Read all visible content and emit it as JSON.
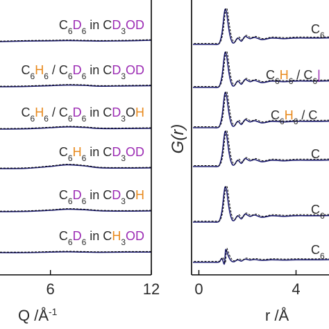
{
  "colors": {
    "deuterium": "#9b2ab3",
    "hydrogen": "#e8891c",
    "text": "#2a2a2a",
    "fit_line": "#1a1a6e",
    "data_dash": "#000000",
    "axis": "#000000"
  },
  "chart_data": [
    {
      "type": "line",
      "panel": "left",
      "xlabel": "Q /Å",
      "xlabel_superscript": "-1",
      "x_ticks": [
        "6",
        "12"
      ],
      "x_tick_values": [
        6,
        12
      ],
      "xlim": [
        3,
        12
      ],
      "series": [
        {
          "label_parts": [
            [
              "C",
              "t"
            ],
            [
              "6",
              "s"
            ],
            [
              "D",
              "d"
            ],
            [
              "6",
              "s"
            ],
            [
              " in C",
              "t"
            ],
            [
              "D",
              "d"
            ],
            [
              "3",
              "s"
            ],
            [
              "OD",
              "d"
            ]
          ],
          "baseline": 0.0,
          "x": [
            3,
            4.5,
            6,
            7,
            8,
            9,
            10.5,
            12
          ],
          "y": [
            0,
            0.02,
            0.03,
            0.04,
            0.03,
            0.02,
            0.03,
            0.05
          ]
        },
        {
          "label_parts": [
            [
              "C",
              "t"
            ],
            [
              "6",
              "s"
            ],
            [
              "H",
              "h"
            ],
            [
              "6",
              "s"
            ],
            [
              " / C",
              "t"
            ],
            [
              "6",
              "s"
            ],
            [
              "D",
              "d"
            ],
            [
              "6",
              "s"
            ],
            [
              " in C",
              "t"
            ],
            [
              "D",
              "d"
            ],
            [
              "3",
              "s"
            ],
            [
              "OD",
              "d"
            ]
          ],
          "baseline": 1.0,
          "x": [
            3,
            4.5,
            6,
            7,
            8,
            9,
            10.5,
            12
          ],
          "y": [
            0,
            0.01,
            0.04,
            0.06,
            0.05,
            0.02,
            0.03,
            0.04
          ]
        },
        {
          "label_parts": [
            [
              "C",
              "t"
            ],
            [
              "6",
              "s"
            ],
            [
              "H",
              "h"
            ],
            [
              "6",
              "s"
            ],
            [
              " / C",
              "t"
            ],
            [
              "6",
              "s"
            ],
            [
              "D",
              "d"
            ],
            [
              "6",
              "s"
            ],
            [
              " in C",
              "t"
            ],
            [
              "D",
              "d"
            ],
            [
              "3",
              "s"
            ],
            [
              "O",
              "t"
            ],
            [
              "H",
              "h"
            ]
          ],
          "baseline": 2.0,
          "x": [
            3,
            4.5,
            6,
            7,
            8,
            9,
            10.5,
            12
          ],
          "y": [
            0,
            0.01,
            0.05,
            0.08,
            0.06,
            0.02,
            0.02,
            0.03
          ]
        },
        {
          "label_parts": [
            [
              "C",
              "t"
            ],
            [
              "6",
              "s"
            ],
            [
              "H",
              "h"
            ],
            [
              "6",
              "s"
            ],
            [
              " in C",
              "t"
            ],
            [
              "D",
              "d"
            ],
            [
              "3",
              "s"
            ],
            [
              "OD",
              "d"
            ]
          ],
          "baseline": 3.0,
          "x": [
            3,
            4.5,
            6,
            7,
            8,
            9,
            10.5,
            12
          ],
          "y": [
            0,
            0.01,
            0.08,
            0.14,
            0.1,
            0.03,
            0.02,
            0.03
          ]
        },
        {
          "label_parts": [
            [
              "C",
              "t"
            ],
            [
              "6",
              "s"
            ],
            [
              "D",
              "d"
            ],
            [
              "6",
              "s"
            ],
            [
              " in C",
              "t"
            ],
            [
              "D",
              "d"
            ],
            [
              "3",
              "s"
            ],
            [
              "O",
              "t"
            ],
            [
              "H",
              "h"
            ]
          ],
          "baseline": 4.0,
          "x": [
            3,
            4.5,
            6,
            7,
            8,
            9,
            10.5,
            12
          ],
          "y": [
            0,
            0.01,
            0.05,
            0.09,
            0.07,
            0.03,
            0.02,
            0.03
          ]
        },
        {
          "label_parts": [
            [
              "C",
              "t"
            ],
            [
              "6",
              "s"
            ],
            [
              "D",
              "d"
            ],
            [
              "6",
              "s"
            ],
            [
              " in C",
              "t"
            ],
            [
              "H",
              "h"
            ],
            [
              "3",
              "s"
            ],
            [
              "OD",
              "d"
            ]
          ],
          "baseline": 5.0,
          "x": [
            3,
            4.5,
            6,
            7,
            8,
            9,
            10.5,
            12
          ],
          "y": [
            0,
            0.0,
            0.02,
            0.03,
            0.02,
            0.01,
            0.02,
            0.02
          ]
        }
      ]
    },
    {
      "type": "line",
      "panel": "right",
      "ylabel": "G(r)",
      "xlabel": "r /Å",
      "x_ticks": [
        "0",
        "4"
      ],
      "x_tick_values": [
        0,
        4
      ],
      "xlim": [
        -0.3,
        6.5
      ],
      "series": [
        {
          "label_parts": [
            [
              "C",
              "t"
            ],
            [
              "6",
              "s"
            ]
          ],
          "baseline": 0.0
        },
        {
          "label_parts": [
            [
              "C",
              "t"
            ],
            [
              "6",
              "s"
            ],
            [
              "H",
              "h"
            ],
            [
              "6",
              "s"
            ],
            [
              " / C",
              "t"
            ],
            [
              "6",
              "s"
            ],
            [
              "|",
              "d"
            ]
          ],
          "baseline": 1.0
        },
        {
          "label_parts": [
            [
              "C",
              "t"
            ],
            [
              "6",
              "s"
            ],
            [
              "H",
              "h"
            ],
            [
              "6",
              "s"
            ],
            [
              " / C",
              "t"
            ]
          ],
          "baseline": 2.0
        },
        {
          "label_parts": [
            [
              "C",
              "t"
            ]
          ],
          "baseline": 3.0
        },
        {
          "label_parts": [
            [
              "C",
              "t"
            ],
            [
              "6",
              "s"
            ]
          ],
          "baseline": 4.0
        },
        {
          "label_parts": [
            [
              "C",
              "t"
            ],
            [
              "6",
              "s"
            ]
          ],
          "baseline": 5.0
        }
      ],
      "pdf_x": [
        0.6,
        0.75,
        0.85,
        0.95,
        1.05,
        1.1,
        1.15,
        1.25,
        1.35,
        1.45,
        1.6,
        1.75,
        1.9,
        2.1,
        2.3,
        2.6,
        3.0,
        3.5,
        4.0,
        5.0,
        6.5
      ],
      "pdf_y": [
        0,
        0,
        0.05,
        0.35,
        1.0,
        1.1,
        0.95,
        0.4,
        0.1,
        0.05,
        0.2,
        0.1,
        0.25,
        0.18,
        0.22,
        0.15,
        0.2,
        0.18,
        0.2,
        0.2,
        0.22
      ]
    }
  ]
}
